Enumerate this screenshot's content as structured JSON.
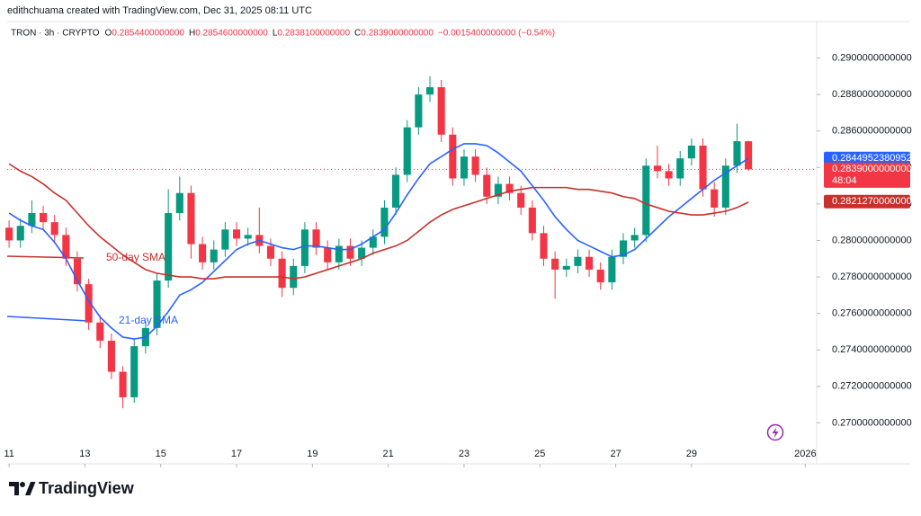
{
  "header": {
    "attribution": "edithchuama created with TradingView.com, Dec 31, 2025 08:11 UTC"
  },
  "chart_data": {
    "type": "candlestick",
    "symbol": "TRON · 3h · CRYPTO",
    "ohlc_legend": [
      {
        "key": "O",
        "text": "0.2854400000000"
      },
      {
        "key": "H",
        "text": "0.2854600000000"
      },
      {
        "key": "L",
        "text": "0.2838100000000"
      },
      {
        "key": "C",
        "text": "0.2839000000000"
      }
    ],
    "change": "−0.0015400000000 (−0.54%)",
    "up_color": "#089981",
    "down_color": "#f23645",
    "x": [
      11,
      11.3,
      11.6,
      11.9,
      12.2,
      12.5,
      12.8,
      13.1,
      13.4,
      13.7,
      14,
      14.3,
      14.6,
      14.9,
      15.2,
      15.5,
      15.8,
      16.1,
      16.4,
      16.7,
      17,
      17.3,
      17.6,
      17.9,
      18.2,
      18.5,
      18.8,
      19.1,
      19.4,
      19.7,
      20,
      20.3,
      20.6,
      20.9,
      21.2,
      21.5,
      21.8,
      22.1,
      22.4,
      22.7,
      23,
      23.3,
      23.6,
      23.9,
      24.2,
      24.5,
      24.8,
      25.1,
      25.4,
      25.7,
      26,
      26.3,
      26.6,
      26.9,
      27.2,
      27.5,
      27.8,
      28.1,
      28.4,
      28.7,
      29,
      29.3,
      29.6,
      29.9,
      30.2,
      30.5
    ],
    "open": [
      0.2807,
      0.28,
      0.2808,
      0.2815,
      0.281,
      0.2803,
      0.279,
      0.2776,
      0.2755,
      0.2745,
      0.2728,
      0.2714,
      0.2742,
      0.2752,
      0.2778,
      0.2815,
      0.2826,
      0.2798,
      0.2788,
      0.2795,
      0.2806,
      0.2801,
      0.2803,
      0.2797,
      0.279,
      0.2774,
      0.2786,
      0.2806,
      0.2796,
      0.2788,
      0.2797,
      0.279,
      0.2796,
      0.2802,
      0.2818,
      0.2836,
      0.2862,
      0.288,
      0.2884,
      0.2858,
      0.2834,
      0.2846,
      0.2836,
      0.2824,
      0.2831,
      0.2826,
      0.2818,
      0.2804,
      0.279,
      0.2784,
      0.2786,
      0.2791,
      0.2784,
      0.2777,
      0.2791,
      0.28,
      0.2803,
      0.2841,
      0.2838,
      0.2834,
      0.2845,
      0.2852,
      0.2828,
      0.2818,
      0.2841,
      0.28544
    ],
    "high": [
      0.2811,
      0.2812,
      0.2822,
      0.2819,
      0.2814,
      0.2807,
      0.2794,
      0.2779,
      0.2759,
      0.2749,
      0.2731,
      0.2746,
      0.2756,
      0.2782,
      0.2828,
      0.2835,
      0.283,
      0.2802,
      0.28,
      0.281,
      0.281,
      0.2807,
      0.2818,
      0.2801,
      0.2794,
      0.279,
      0.281,
      0.281,
      0.28,
      0.2801,
      0.2801,
      0.28,
      0.2806,
      0.2822,
      0.284,
      0.2866,
      0.2884,
      0.289,
      0.2888,
      0.2862,
      0.285,
      0.285,
      0.284,
      0.2835,
      0.2835,
      0.283,
      0.2822,
      0.2808,
      0.2794,
      0.279,
      0.2795,
      0.2795,
      0.2788,
      0.2795,
      0.2804,
      0.2807,
      0.2845,
      0.2852,
      0.2842,
      0.2849,
      0.2856,
      0.2856,
      0.2832,
      0.2845,
      0.2864,
      0.28546
    ],
    "low": [
      0.2796,
      0.2796,
      0.2804,
      0.2806,
      0.2799,
      0.2786,
      0.2772,
      0.2751,
      0.2741,
      0.2724,
      0.2708,
      0.2711,
      0.2738,
      0.2748,
      0.2774,
      0.2811,
      0.279,
      0.2784,
      0.2784,
      0.2791,
      0.2797,
      0.2797,
      0.2793,
      0.2786,
      0.2769,
      0.277,
      0.2782,
      0.2792,
      0.2784,
      0.2784,
      0.2786,
      0.2786,
      0.2792,
      0.2798,
      0.2814,
      0.2832,
      0.2858,
      0.2876,
      0.2854,
      0.283,
      0.283,
      0.2832,
      0.282,
      0.282,
      0.2822,
      0.2814,
      0.28,
      0.2786,
      0.2768,
      0.278,
      0.2782,
      0.278,
      0.2773,
      0.2773,
      0.2787,
      0.2796,
      0.2799,
      0.2834,
      0.283,
      0.283,
      0.2841,
      0.2824,
      0.2813,
      0.2814,
      0.2837,
      0.28381
    ],
    "close": [
      0.28,
      0.2808,
      0.2815,
      0.281,
      0.2803,
      0.279,
      0.2776,
      0.2755,
      0.2745,
      0.2728,
      0.2714,
      0.2742,
      0.2752,
      0.2778,
      0.2815,
      0.2826,
      0.2798,
      0.2788,
      0.2795,
      0.2806,
      0.2801,
      0.2803,
      0.2797,
      0.279,
      0.2774,
      0.2786,
      0.2806,
      0.2796,
      0.2788,
      0.2797,
      0.279,
      0.2796,
      0.2802,
      0.2818,
      0.2836,
      0.2862,
      0.288,
      0.2884,
      0.2858,
      0.2834,
      0.2846,
      0.2836,
      0.2824,
      0.2831,
      0.2826,
      0.2818,
      0.2804,
      0.279,
      0.2784,
      0.2786,
      0.2791,
      0.2784,
      0.2777,
      0.2791,
      0.28,
      0.2803,
      0.2841,
      0.2838,
      0.2834,
      0.2845,
      0.2852,
      0.2828,
      0.2818,
      0.2841,
      0.28544,
      0.2839
    ],
    "series": [
      {
        "name": "21-day SMA",
        "color": "#2962ff",
        "values": [
          0.2815,
          0.2811,
          0.2808,
          0.2806,
          0.2799,
          0.279,
          0.2778,
          0.2767,
          0.2758,
          0.2752,
          0.2747,
          0.2746,
          0.2747,
          0.2753,
          0.2761,
          0.277,
          0.2773,
          0.2777,
          0.2783,
          0.2789,
          0.2795,
          0.2798,
          0.28,
          0.2798,
          0.2796,
          0.2795,
          0.2797,
          0.2797,
          0.2796,
          0.2795,
          0.2795,
          0.2798,
          0.2802,
          0.2806,
          0.2815,
          0.2825,
          0.2834,
          0.2842,
          0.2846,
          0.285,
          0.2853,
          0.2853,
          0.2852,
          0.2848,
          0.2843,
          0.2838,
          0.283,
          0.2822,
          0.2813,
          0.2806,
          0.28,
          0.2797,
          0.2794,
          0.2791,
          0.2792,
          0.2795,
          0.2801,
          0.2807,
          0.2813,
          0.2818,
          0.2823,
          0.2828,
          0.2833,
          0.2837,
          0.2841,
          0.2845
        ],
        "last_label": {
          "value": 0.2844952380952,
          "label": "0.2844952380952"
        }
      },
      {
        "name": "50-day SMA",
        "color": "#c9302c",
        "values": [
          0.2842,
          0.2838,
          0.2835,
          0.2831,
          0.2826,
          0.2822,
          0.2815,
          0.2808,
          0.2802,
          0.2797,
          0.2792,
          0.2788,
          0.2784,
          0.2782,
          0.2781,
          0.278,
          0.278,
          0.2779,
          0.2779,
          0.278,
          0.278,
          0.278,
          0.278,
          0.278,
          0.278,
          0.2779,
          0.278,
          0.2782,
          0.2784,
          0.2786,
          0.2788,
          0.279,
          0.2793,
          0.2795,
          0.2797,
          0.28,
          0.2805,
          0.281,
          0.2814,
          0.2817,
          0.2819,
          0.2821,
          0.2823,
          0.2825,
          0.2827,
          0.2828,
          0.2829,
          0.2829,
          0.2829,
          0.2829,
          0.2828,
          0.2828,
          0.2827,
          0.2826,
          0.2824,
          0.2823,
          0.282,
          0.2818,
          0.2816,
          0.2815,
          0.2814,
          0.2814,
          0.2815,
          0.2816,
          0.2818,
          0.2821
        ],
        "last_label": {
          "value": 0.282127,
          "label": "0.2821270000000"
        }
      }
    ],
    "price_label": {
      "value": 0.2839,
      "label": "0.2839000000000"
    },
    "countdown": "48:04",
    "xlim": [
      10.95,
      32.3
    ],
    "xticks": [
      11,
      13,
      15,
      17,
      19,
      21,
      23,
      25,
      27,
      29,
      {
        "value": 32,
        "label": "2026"
      }
    ],
    "ylim": [
      0.26775,
      0.292
    ],
    "yticks": [
      {
        "value": 0.27,
        "label": "0.2700000000000"
      },
      {
        "value": 0.272,
        "label": "0.2720000000000"
      },
      {
        "value": 0.274,
        "label": "0.2740000000000"
      },
      {
        "value": 0.276,
        "label": "0.2760000000000"
      },
      {
        "value": 0.278,
        "label": "0.2780000000000"
      },
      {
        "value": 0.28,
        "label": "0.2800000000000"
      },
      {
        "value": 0.282,
        "label": "0.2820000000000"
      },
      {
        "value": 0.284,
        "label": "0.2840000000000"
      },
      {
        "value": 0.286,
        "label": "0.2860000000000"
      },
      {
        "value": 0.288,
        "label": "0.2880000000000"
      },
      {
        "value": 0.29,
        "label": "0.2900000000000"
      }
    ]
  },
  "footer": {
    "logo": "TradingView"
  }
}
